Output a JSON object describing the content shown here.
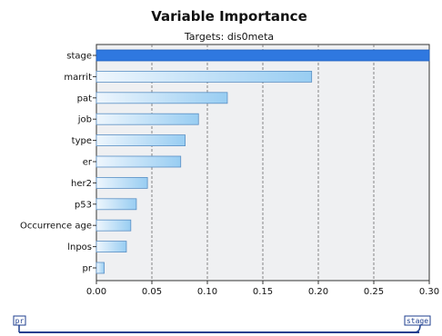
{
  "chart_data": {
    "type": "bar",
    "orientation": "horizontal",
    "title": "Variable Importance",
    "subtitle": "Targets: dis0meta",
    "categories": [
      "stage",
      "marrit",
      "pat",
      "job",
      "type",
      "er",
      "her2",
      "p53",
      "Occurrence age",
      "lnpos",
      "pr"
    ],
    "values": [
      0.3,
      0.194,
      0.118,
      0.092,
      0.08,
      0.076,
      0.046,
      0.036,
      0.031,
      0.027,
      0.007
    ],
    "xlim": [
      0,
      0.3
    ],
    "xticks": [
      "0.00",
      "0.05",
      "0.10",
      "0.15",
      "0.20",
      "0.25",
      "0.30"
    ],
    "xtick_values": [
      0,
      0.05,
      0.1,
      0.15,
      0.2,
      0.25,
      0.3
    ],
    "grid": "vertical dashed",
    "colors": {
      "plot_bg": "#eff0f2",
      "highlight_bar": "#2f78e0",
      "bar_start": "#eef6fd",
      "bar_end": "#98cdf2",
      "bar_stroke": "#5a8fc4",
      "grid": "#6c6c6c"
    }
  },
  "slider": {
    "left_label": "pr",
    "right_label": "stage",
    "color": "#1f3f8f"
  }
}
